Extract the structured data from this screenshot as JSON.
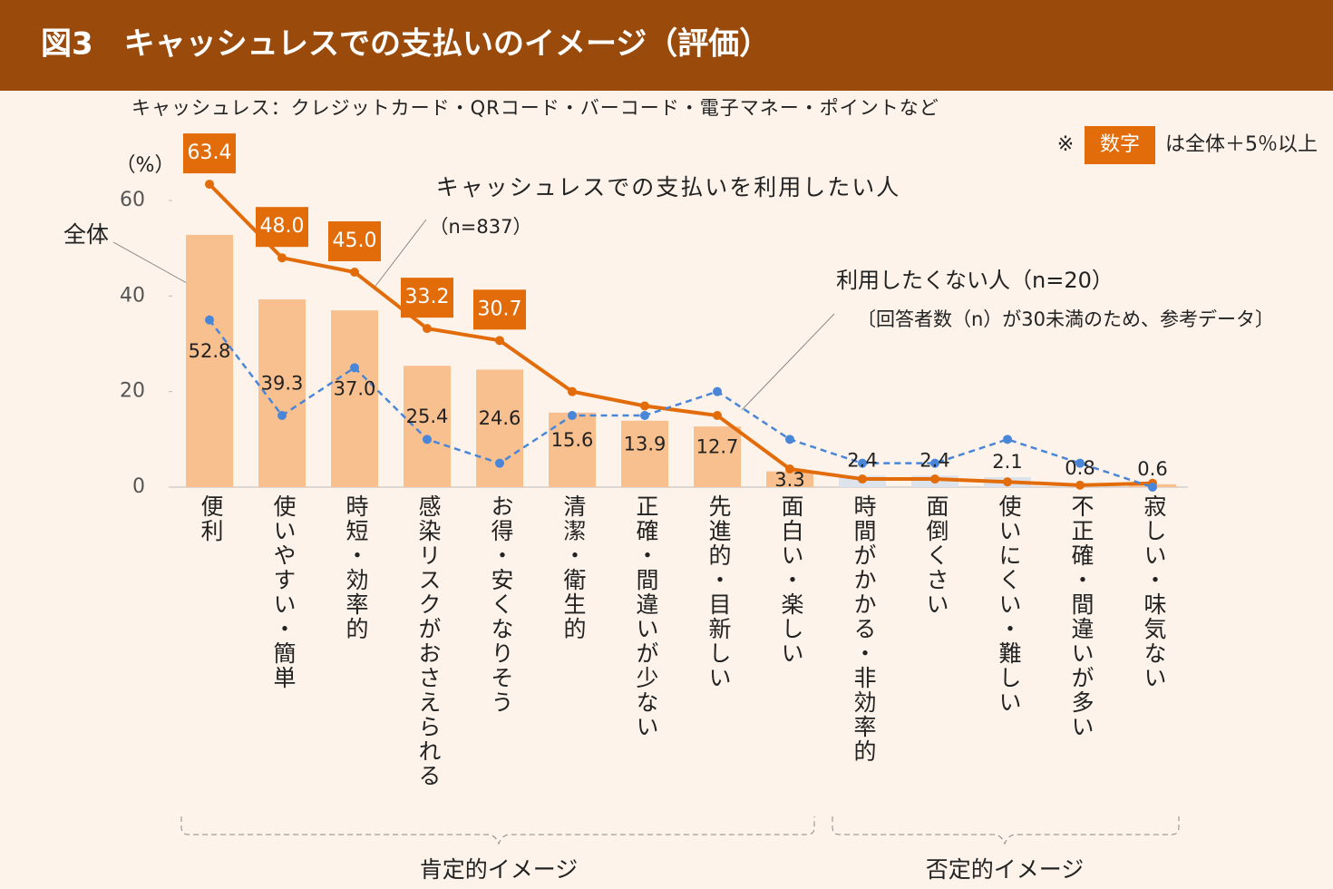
{
  "chart_data": {
    "type": "bar",
    "title": "図3　キャッシュレスでの支払いのイメージ（評価）",
    "subtitle": "キャッシュレス：クレジットカード・QRコード・バーコード・電子マネー・ポイントなど",
    "note_mark": "※",
    "note_box": "数字",
    "note_text": "は全体＋5％以上",
    "y_unit": "（%）",
    "categories": [
      "便利",
      "使いやすい・簡単",
      "時短・効率的",
      "感染リスクがおさえられる",
      "お得・安くなりそう",
      "清潔・衛生的",
      "正確・間違いが少ない",
      "先進的・目新しい",
      "面白い・楽しい",
      "時間がかかる・非効率的",
      "面倒くさい",
      "使いにくい・難しい",
      "不正確・間違いが多い",
      "寂しい・味気ない"
    ],
    "groups": [
      "肯定的イメージ",
      "否定的イメージ"
    ],
    "ylim": [
      0,
      60
    ],
    "yticks": [
      0,
      20,
      40,
      60
    ],
    "series": [
      {
        "name": "全体",
        "type": "bar",
        "colors": [
          "#f9c08f",
          "#f9c08f",
          "#f9c08f",
          "#f9c08f",
          "#f9c08f",
          "#f9c08f",
          "#f9c08f",
          "#f9c08f",
          "#f9c08f",
          "#dce3ec",
          "#dce3ec",
          "#dce3ec",
          "#dce3ec",
          "#f9c08f"
        ],
        "values": [
          52.8,
          39.3,
          37.0,
          25.4,
          24.6,
          15.6,
          13.9,
          12.7,
          3.3,
          2.4,
          2.4,
          2.1,
          0.8,
          0.6
        ],
        "value_labels": [
          "52.8",
          "39.3",
          "37.0",
          "25.4",
          "24.6",
          "15.6",
          "13.9",
          "12.7",
          "3.3",
          "2.4",
          "2.4",
          "2.1",
          "0.8",
          "0.6"
        ]
      },
      {
        "name": "キャッシュレスでの支払いを利用したい人",
        "n_label": "（n=837）",
        "type": "line",
        "color": "#e36c0a",
        "values": [
          63.4,
          48.0,
          45.0,
          33.2,
          30.7,
          20,
          17,
          15,
          3.8,
          1.7,
          1.7,
          1.1,
          0.4,
          0.8
        ],
        "value_labels": [
          "63.4",
          "48.0",
          "45.0",
          "33.2",
          "30.7",
          null,
          null,
          null,
          null,
          null,
          null,
          null,
          null,
          null
        ]
      },
      {
        "name": "利用したくない人（n=20）",
        "sub_note": "〔回答者数（n）が30未満のため、参考データ〕",
        "type": "line",
        "dashed": true,
        "color": "#4a86d8",
        "values": [
          35,
          15,
          25,
          10,
          5,
          15,
          15,
          20,
          10,
          5,
          5,
          10,
          5,
          0
        ]
      }
    ]
  }
}
